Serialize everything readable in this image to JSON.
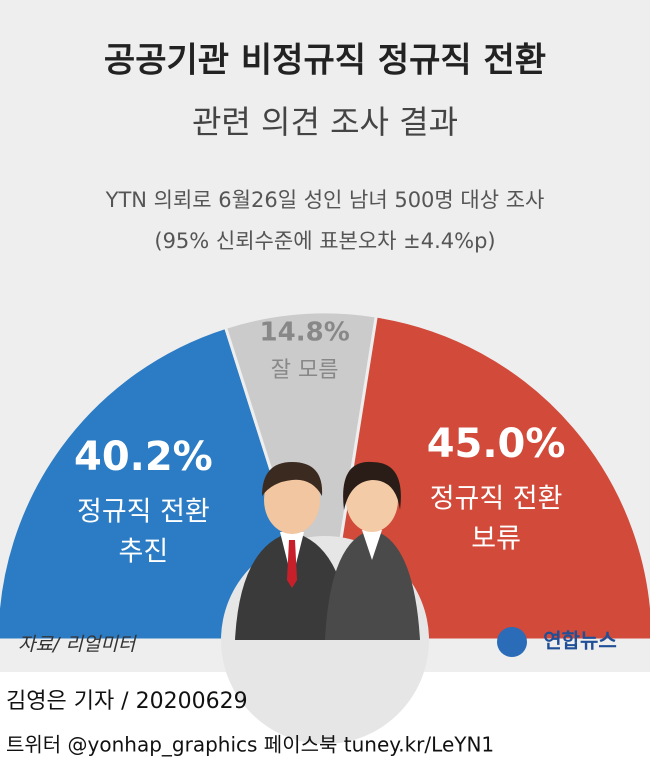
{
  "chart_data": {
    "type": "half-donut",
    "title": "공공기관 비정규직 정규직 전환",
    "subtitle": "관련 의견 조사 결과",
    "notes": [
      "YTN 의뢰로 6월26일 성인 남녀 500명 대상 조사",
      "(95% 신뢰수준에 표본오차 ±4.4%p)"
    ],
    "categories": [
      [
        "정규직 전환",
        "추진"
      ],
      [
        "잘 모름"
      ],
      [
        "정규직 전환",
        "보류"
      ]
    ],
    "values": [
      40.2,
      14.8,
      45.0
    ],
    "value_labels": [
      "40.2%",
      "14.8%",
      "45.0%"
    ],
    "colors": [
      "#2b7cc4",
      "#cbcbcb",
      "#d24a3a"
    ],
    "source": "자료/ 리얼미터"
  },
  "logo": "연합뉴스",
  "footer": {
    "byline": "김영은 기자 / 20200629",
    "social": "트위터 @yonhap_graphics  페이스북 tuney.kr/LeYN1"
  }
}
